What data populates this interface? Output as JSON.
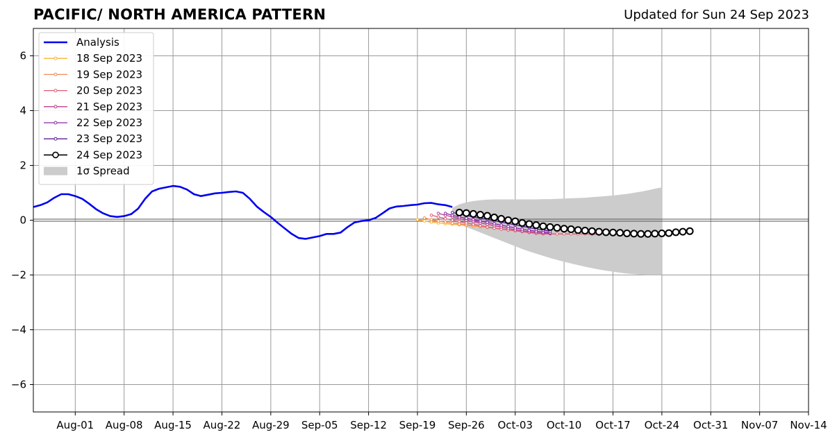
{
  "header": {
    "title": "PACIFIC/ NORTH AMERICA PATTERN",
    "updated": "Updated for Sun 24 Sep 2023"
  },
  "colors": {
    "analysis": "#0000ee",
    "spread": "#cccccc",
    "grid": "#999999",
    "zero_line": "#555555",
    "forecast": {
      "18 Sep 2023": "#f9b233",
      "19 Sep 2023": "#f08a4b",
      "20 Sep 2023": "#dd5a6e",
      "21 Sep 2023": "#c03a8d",
      "22 Sep 2023": "#8e24aa",
      "23 Sep 2023": "#5b1a9a",
      "24 Sep 2023": "#000000"
    }
  },
  "chart_data": {
    "type": "line",
    "title": "PACIFIC/ NORTH AMERICA PATTERN",
    "subtitle": "Updated for Sun 24 Sep 2023",
    "xlabel": "",
    "ylabel": "",
    "xlim": [
      "2023-07-26",
      "2023-11-14"
    ],
    "ylim": [
      -7,
      7
    ],
    "x_ticks": [
      "Aug-01",
      "Aug-08",
      "Aug-15",
      "Aug-22",
      "Aug-29",
      "Sep-05",
      "Sep-12",
      "Sep-19",
      "Sep-26",
      "Oct-03",
      "Oct-10",
      "Oct-17",
      "Oct-24",
      "Oct-31",
      "Nov-07",
      "Nov-14"
    ],
    "x_tick_dates": [
      "2023-08-01",
      "2023-08-08",
      "2023-08-15",
      "2023-08-22",
      "2023-08-29",
      "2023-09-05",
      "2023-09-12",
      "2023-09-19",
      "2023-09-26",
      "2023-10-03",
      "2023-10-10",
      "2023-10-17",
      "2023-10-24",
      "2023-10-31",
      "2023-11-07",
      "2023-11-14"
    ],
    "y_ticks": [
      6,
      4,
      2,
      0,
      -2,
      -4,
      -6
    ],
    "y_tick_labels": [
      "6",
      "4",
      "2",
      "0",
      "−2",
      "−4",
      "−6"
    ],
    "grid": true,
    "legend_position": "top-left",
    "legend": [
      "Analysis",
      "18 Sep 2023",
      "19 Sep 2023",
      "20 Sep 2023",
      "21 Sep 2023",
      "22 Sep 2023",
      "23 Sep 2023",
      "24 Sep 2023",
      "1σ Spread"
    ],
    "analysis": {
      "name": "Analysis",
      "start": "2023-07-26",
      "values": [
        0.48,
        0.55,
        0.65,
        0.82,
        0.95,
        0.95,
        0.88,
        0.78,
        0.6,
        0.4,
        0.25,
        0.15,
        0.12,
        0.15,
        0.22,
        0.42,
        0.78,
        1.05,
        1.15,
        1.2,
        1.25,
        1.22,
        1.12,
        0.95,
        0.88,
        0.93,
        0.98,
        1.0,
        1.03,
        1.05,
        1.0,
        0.78,
        0.5,
        0.3,
        0.12,
        -0.1,
        -0.3,
        -0.5,
        -0.65,
        -0.68,
        -0.63,
        -0.58,
        -0.5,
        -0.5,
        -0.45,
        -0.25,
        -0.08,
        -0.03,
        0.0,
        0.08,
        0.25,
        0.43,
        0.5,
        0.52,
        0.55,
        0.57,
        0.62,
        0.63,
        0.58,
        0.55,
        0.48
      ]
    },
    "spread": {
      "name": "1σ Spread",
      "start": "2023-09-24",
      "upper": [
        0.45,
        0.58,
        0.65,
        0.7,
        0.73,
        0.75,
        0.76,
        0.76,
        0.76,
        0.76,
        0.76,
        0.76,
        0.76,
        0.77,
        0.77,
        0.78,
        0.79,
        0.8,
        0.81,
        0.82,
        0.84,
        0.86,
        0.88,
        0.9,
        0.93,
        0.96,
        1.0,
        1.04,
        1.09,
        1.15,
        1.2
      ],
      "lower": [
        -0.05,
        -0.15,
        -0.25,
        -0.35,
        -0.45,
        -0.55,
        -0.65,
        -0.75,
        -0.85,
        -0.95,
        -1.05,
        -1.14,
        -1.22,
        -1.3,
        -1.38,
        -1.45,
        -1.52,
        -1.58,
        -1.64,
        -1.7,
        -1.75,
        -1.8,
        -1.84,
        -1.88,
        -1.92,
        -1.95,
        -1.97,
        -1.99,
        -2.0,
        -2.0,
        -2.0
      ]
    },
    "series": [
      {
        "name": "18 Sep 2023",
        "start": "2023-09-19",
        "values": [
          0.02,
          -0.03,
          -0.07,
          -0.1,
          -0.13,
          -0.15,
          -0.17,
          -0.19,
          -0.21,
          -0.23,
          -0.25,
          -0.27
        ]
      },
      {
        "name": "19 Sep 2023",
        "start": "2023-09-20",
        "values": [
          0.08,
          0.02,
          -0.03,
          -0.07,
          -0.11,
          -0.14,
          -0.17,
          -0.2,
          -0.23,
          -0.26,
          -0.29,
          -0.32,
          -0.35,
          -0.38
        ]
      },
      {
        "name": "20 Sep 2023",
        "start": "2023-09-21",
        "values": [
          0.18,
          0.12,
          0.06,
          0.0,
          -0.05,
          -0.1,
          -0.15,
          -0.2,
          -0.25,
          -0.29,
          -0.33,
          -0.36,
          -0.39,
          -0.42,
          -0.45,
          -0.48,
          -0.5,
          -0.5,
          -0.5,
          -0.5,
          -0.5,
          -0.5,
          -0.5,
          -0.51,
          -0.52
        ]
      },
      {
        "name": "21 Sep 2023",
        "start": "2023-09-22",
        "values": [
          0.25,
          0.18,
          0.12,
          0.06,
          0.0,
          -0.05,
          -0.1,
          -0.15,
          -0.2,
          -0.25,
          -0.3,
          -0.35,
          -0.39,
          -0.42,
          -0.45,
          -0.47,
          -0.48
        ]
      },
      {
        "name": "22 Sep 2023",
        "start": "2023-09-23",
        "values": [
          0.25,
          0.18,
          0.12,
          0.07,
          0.02,
          -0.03,
          -0.08,
          -0.13,
          -0.18,
          -0.23,
          -0.28,
          -0.33,
          -0.37,
          -0.4,
          -0.43,
          -0.46
        ]
      },
      {
        "name": "23 Sep 2023",
        "start": "2023-09-24",
        "values": [
          0.28,
          0.22,
          0.17,
          0.12,
          0.08,
          0.03,
          -0.02,
          -0.07,
          -0.12,
          -0.17,
          -0.22,
          -0.27,
          -0.32,
          -0.36,
          -0.4
        ]
      },
      {
        "name": "24 Sep 2023",
        "start": "2023-09-25",
        "values": [
          0.28,
          0.26,
          0.23,
          0.2,
          0.16,
          0.1,
          0.05,
          0.0,
          -0.04,
          -0.1,
          -0.14,
          -0.18,
          -0.22,
          -0.25,
          -0.28,
          -0.31,
          -0.33,
          -0.36,
          -0.38,
          -0.4,
          -0.42,
          -0.44,
          -0.45,
          -0.46,
          -0.48,
          -0.49,
          -0.5,
          -0.5,
          -0.49,
          -0.48,
          -0.47,
          -0.44,
          -0.42,
          -0.4
        ]
      }
    ]
  }
}
